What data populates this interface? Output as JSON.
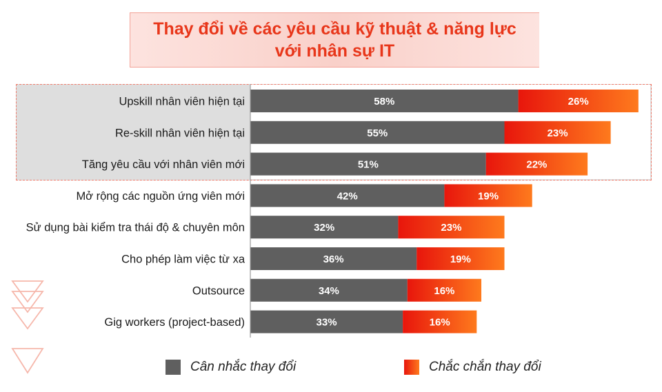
{
  "title": {
    "line1": "Thay đổi về các yêu cầu kỹ thuật & năng lực",
    "line2": "với nhân sự IT"
  },
  "colors": {
    "consider": "#5f5f5f",
    "certain_start": "#e8160c",
    "certain_end": "#fe7a1d",
    "title_text": "#e8361a",
    "highlight_fill": "#dedede",
    "highlight_border": "#f07a6a"
  },
  "chart_data": {
    "type": "bar",
    "orientation": "horizontal",
    "stacked": true,
    "categories": [
      "Upskill nhân viên hiện tại",
      "Re-skill nhân viên hiện tại",
      "Tăng yêu cầu với nhân viên mới",
      "Mở rộng các nguồn ứng viên mới",
      "Sử dụng bài kiểm tra thái độ & chuyên môn",
      "Cho phép làm việc từ xa",
      "Outsource",
      "Gig workers (project-based)"
    ],
    "series": [
      {
        "name": "Cân nhắc thay đổi",
        "values": [
          58,
          55,
          51,
          42,
          32,
          36,
          34,
          33
        ],
        "labels": [
          "58%",
          "55%",
          "51%",
          "42%",
          "32%",
          "36%",
          "34%",
          "33%"
        ]
      },
      {
        "name": "Chắc chắn thay đổi",
        "values": [
          26,
          23,
          22,
          19,
          23,
          19,
          16,
          16
        ],
        "labels": [
          "26%",
          "23%",
          "22%",
          "19%",
          "23%",
          "19%",
          "16%",
          "16%"
        ]
      }
    ],
    "highlighted_categories": [
      0,
      1,
      2
    ],
    "legend_position": "bottom",
    "grid": false
  }
}
